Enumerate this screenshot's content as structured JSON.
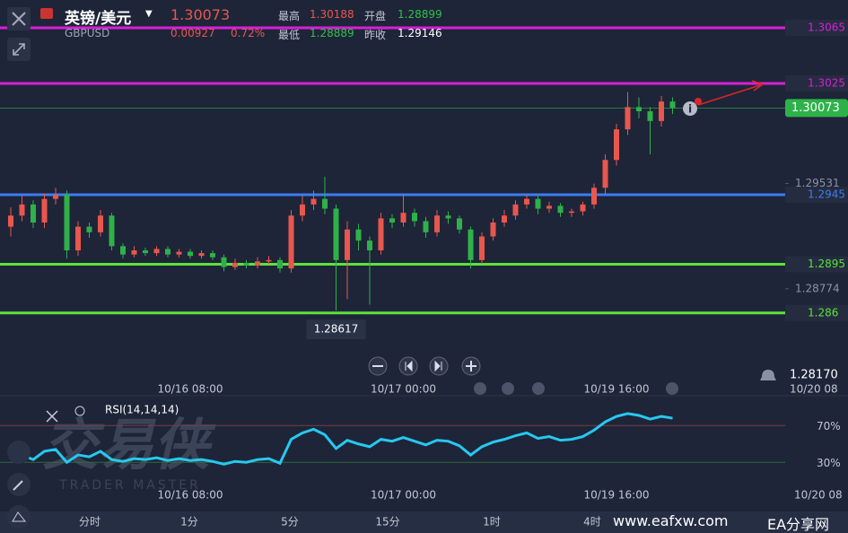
{
  "header": {
    "title": "英镑/美元",
    "price": "1.30073",
    "symbol": "GBPUSD",
    "change": "0.00927",
    "change_pct": "0.72%",
    "high_label": "最高",
    "high": "1.30188",
    "open_label": "开盘",
    "open": "1.28899",
    "low_label": "最低",
    "low": "1.28889",
    "prev_label": "昨收",
    "prev_close": "1.29146"
  },
  "chart_data": [
    {
      "type": "candlestick",
      "categories": [
        null,
        null,
        null,
        null,
        null,
        null,
        null,
        null,
        null,
        null,
        null,
        null,
        null,
        null,
        null,
        null,
        "10/16 08:00",
        null,
        null,
        null,
        null,
        null,
        null,
        null,
        null,
        null,
        null,
        null,
        null,
        null,
        null,
        null,
        null,
        null,
        null,
        "10/17 00:00",
        null,
        null,
        null,
        null,
        null,
        null,
        null,
        null,
        null,
        null,
        null,
        null,
        null,
        null,
        null,
        null,
        null,
        null,
        "10/19 16:00",
        null,
        null,
        null,
        null,
        null
      ],
      "x_edge_label": "10/20 08",
      "open": [
        1.2922,
        1.293,
        1.2938,
        1.2925,
        1.2942,
        1.2945,
        1.2905,
        1.2922,
        1.2918,
        1.293,
        1.2908,
        1.2902,
        1.2905,
        1.2903,
        1.2906,
        1.2902,
        1.2904,
        1.2901,
        1.2903,
        1.29,
        1.2893,
        1.2896,
        1.2894,
        1.2897,
        1.2898,
        1.2892,
        1.293,
        1.2938,
        1.2942,
        1.2935,
        1.2898,
        1.292,
        1.2912,
        1.2905,
        1.2928,
        1.2925,
        1.2932,
        1.2926,
        1.2918,
        1.293,
        1.2928,
        1.292,
        1.2898,
        1.2915,
        1.2925,
        1.293,
        1.2938,
        1.2942,
        1.2935,
        1.2937,
        1.2932,
        1.2933,
        1.2938,
        1.295,
        1.297,
        1.2992,
        1.3008,
        1.3005,
        1.2998,
        1.3012
      ],
      "high": [
        1.2936,
        1.2944,
        1.2941,
        1.2946,
        1.295,
        1.2948,
        1.2926,
        1.2925,
        1.2934,
        1.2932,
        1.291,
        1.2908,
        1.2907,
        1.2908,
        1.2908,
        1.2906,
        1.2906,
        1.2905,
        1.2905,
        1.2902,
        1.2899,
        1.2898,
        1.29,
        1.2901,
        1.29,
        1.2934,
        1.2944,
        1.2948,
        1.2958,
        1.2938,
        1.2926,
        1.2924,
        1.2915,
        1.2932,
        1.2931,
        1.2946,
        1.2935,
        1.2929,
        1.2934,
        1.2933,
        1.293,
        1.2922,
        1.2918,
        1.2928,
        1.2934,
        1.2941,
        1.2945,
        1.2944,
        1.294,
        1.2939,
        1.2935,
        1.294,
        1.2953,
        1.2974,
        1.2996,
        1.30188,
        1.3015,
        1.3008,
        1.3016,
        1.3015
      ],
      "low": [
        1.2915,
        1.2926,
        1.2921,
        1.2921,
        1.2938,
        1.2899,
        1.2901,
        1.2914,
        1.2915,
        1.2905,
        1.2899,
        1.29,
        1.2901,
        1.2901,
        1.29,
        1.29,
        1.2899,
        1.2899,
        1.2898,
        1.289,
        1.2891,
        1.2892,
        1.2892,
        1.2895,
        1.2889,
        1.2889,
        1.2926,
        1.2934,
        1.2931,
        1.28617,
        1.287,
        1.2905,
        1.2866,
        1.2902,
        1.2921,
        1.2922,
        1.2922,
        1.2914,
        1.2915,
        1.2924,
        1.2917,
        1.2892,
        1.2895,
        1.2912,
        1.2922,
        1.2927,
        1.2935,
        1.2931,
        1.2932,
        1.2929,
        1.2929,
        1.293,
        1.2935,
        1.2946,
        1.2966,
        1.2988,
        1.3,
        1.2974,
        1.2994,
        1.3003
      ],
      "close": [
        1.293,
        1.2938,
        1.2925,
        1.2942,
        1.2945,
        1.2905,
        1.2922,
        1.2918,
        1.293,
        1.2908,
        1.2902,
        1.2905,
        1.2903,
        1.2906,
        1.2902,
        1.2904,
        1.2901,
        1.2903,
        1.29,
        1.2893,
        1.2896,
        1.2894,
        1.2897,
        1.2898,
        1.2892,
        1.293,
        1.2938,
        1.2942,
        1.2935,
        1.2898,
        1.292,
        1.2912,
        1.2905,
        1.2928,
        1.2925,
        1.2932,
        1.2926,
        1.2918,
        1.293,
        1.2928,
        1.292,
        1.2898,
        1.2915,
        1.2925,
        1.293,
        1.2938,
        1.2942,
        1.2935,
        1.2937,
        1.2932,
        1.2933,
        1.2938,
        1.295,
        1.297,
        1.2992,
        1.3008,
        1.3005,
        1.2998,
        1.3012,
        1.30073
      ],
      "low_marker_index": 29,
      "up_color": "#e8574e",
      "down_color": "#2fb14a",
      "ylim": [
        1.2825,
        1.3085
      ],
      "yticks": [
        1.29531,
        1.28774
      ],
      "last_price": 1.30073,
      "last_price_color": "#2fb14a",
      "alert": {
        "value": 1.2817,
        "label": "1.28170"
      },
      "levels": [
        {
          "value": 1.3065,
          "color": "#d81ed8"
        },
        {
          "value": 1.3025,
          "color": "#d81ed8"
        },
        {
          "value": 1.2945,
          "color": "#3d7cf2"
        },
        {
          "value": 1.2895,
          "color": "#5be23c"
        },
        {
          "value": 1.286,
          "color": "#5be23c"
        }
      ]
    },
    {
      "type": "line",
      "title": "RSI(14,14,14)",
      "categories": [
        null,
        null,
        null,
        null,
        null,
        null,
        null,
        null,
        null,
        null,
        null,
        null,
        null,
        null,
        null,
        null,
        "10/16 08:00",
        null,
        null,
        null,
        null,
        null,
        null,
        null,
        null,
        null,
        null,
        null,
        null,
        null,
        null,
        null,
        null,
        null,
        null,
        "10/17 00:00",
        null,
        null,
        null,
        null,
        null,
        null,
        null,
        null,
        null,
        null,
        null,
        null,
        null,
        null,
        null,
        null,
        null,
        null,
        "10/19 16:00",
        null,
        null,
        null,
        null,
        null
      ],
      "x_edge_label": "10/20 08",
      "series": [
        {
          "color": "#27c8f0",
          "values": [
            35,
            38,
            33,
            42,
            44,
            30,
            38,
            36,
            42,
            33,
            31,
            34,
            33,
            35,
            32,
            34,
            32,
            33,
            31,
            28,
            31,
            30,
            33,
            34,
            29,
            55,
            62,
            66,
            60,
            45,
            54,
            50,
            47,
            55,
            53,
            57,
            53,
            49,
            54,
            53,
            48,
            38,
            47,
            52,
            55,
            59,
            62,
            56,
            58,
            54,
            55,
            58,
            65,
            74,
            80,
            83,
            81,
            77,
            80,
            78
          ]
        }
      ],
      "ylim": [
        0,
        100
      ],
      "yticks": [
        {
          "value": 70,
          "label": "70%"
        },
        {
          "value": 30,
          "label": "30%"
        }
      ]
    }
  ],
  "tabs": [
    "分时",
    "1分",
    "5分",
    "15分",
    "1时",
    "4时"
  ],
  "watermark": {
    "logo": "交易侠",
    "sub": "TRADER MASTER",
    "site": "www.eafxw.com",
    "site_name": "EA分享网"
  }
}
